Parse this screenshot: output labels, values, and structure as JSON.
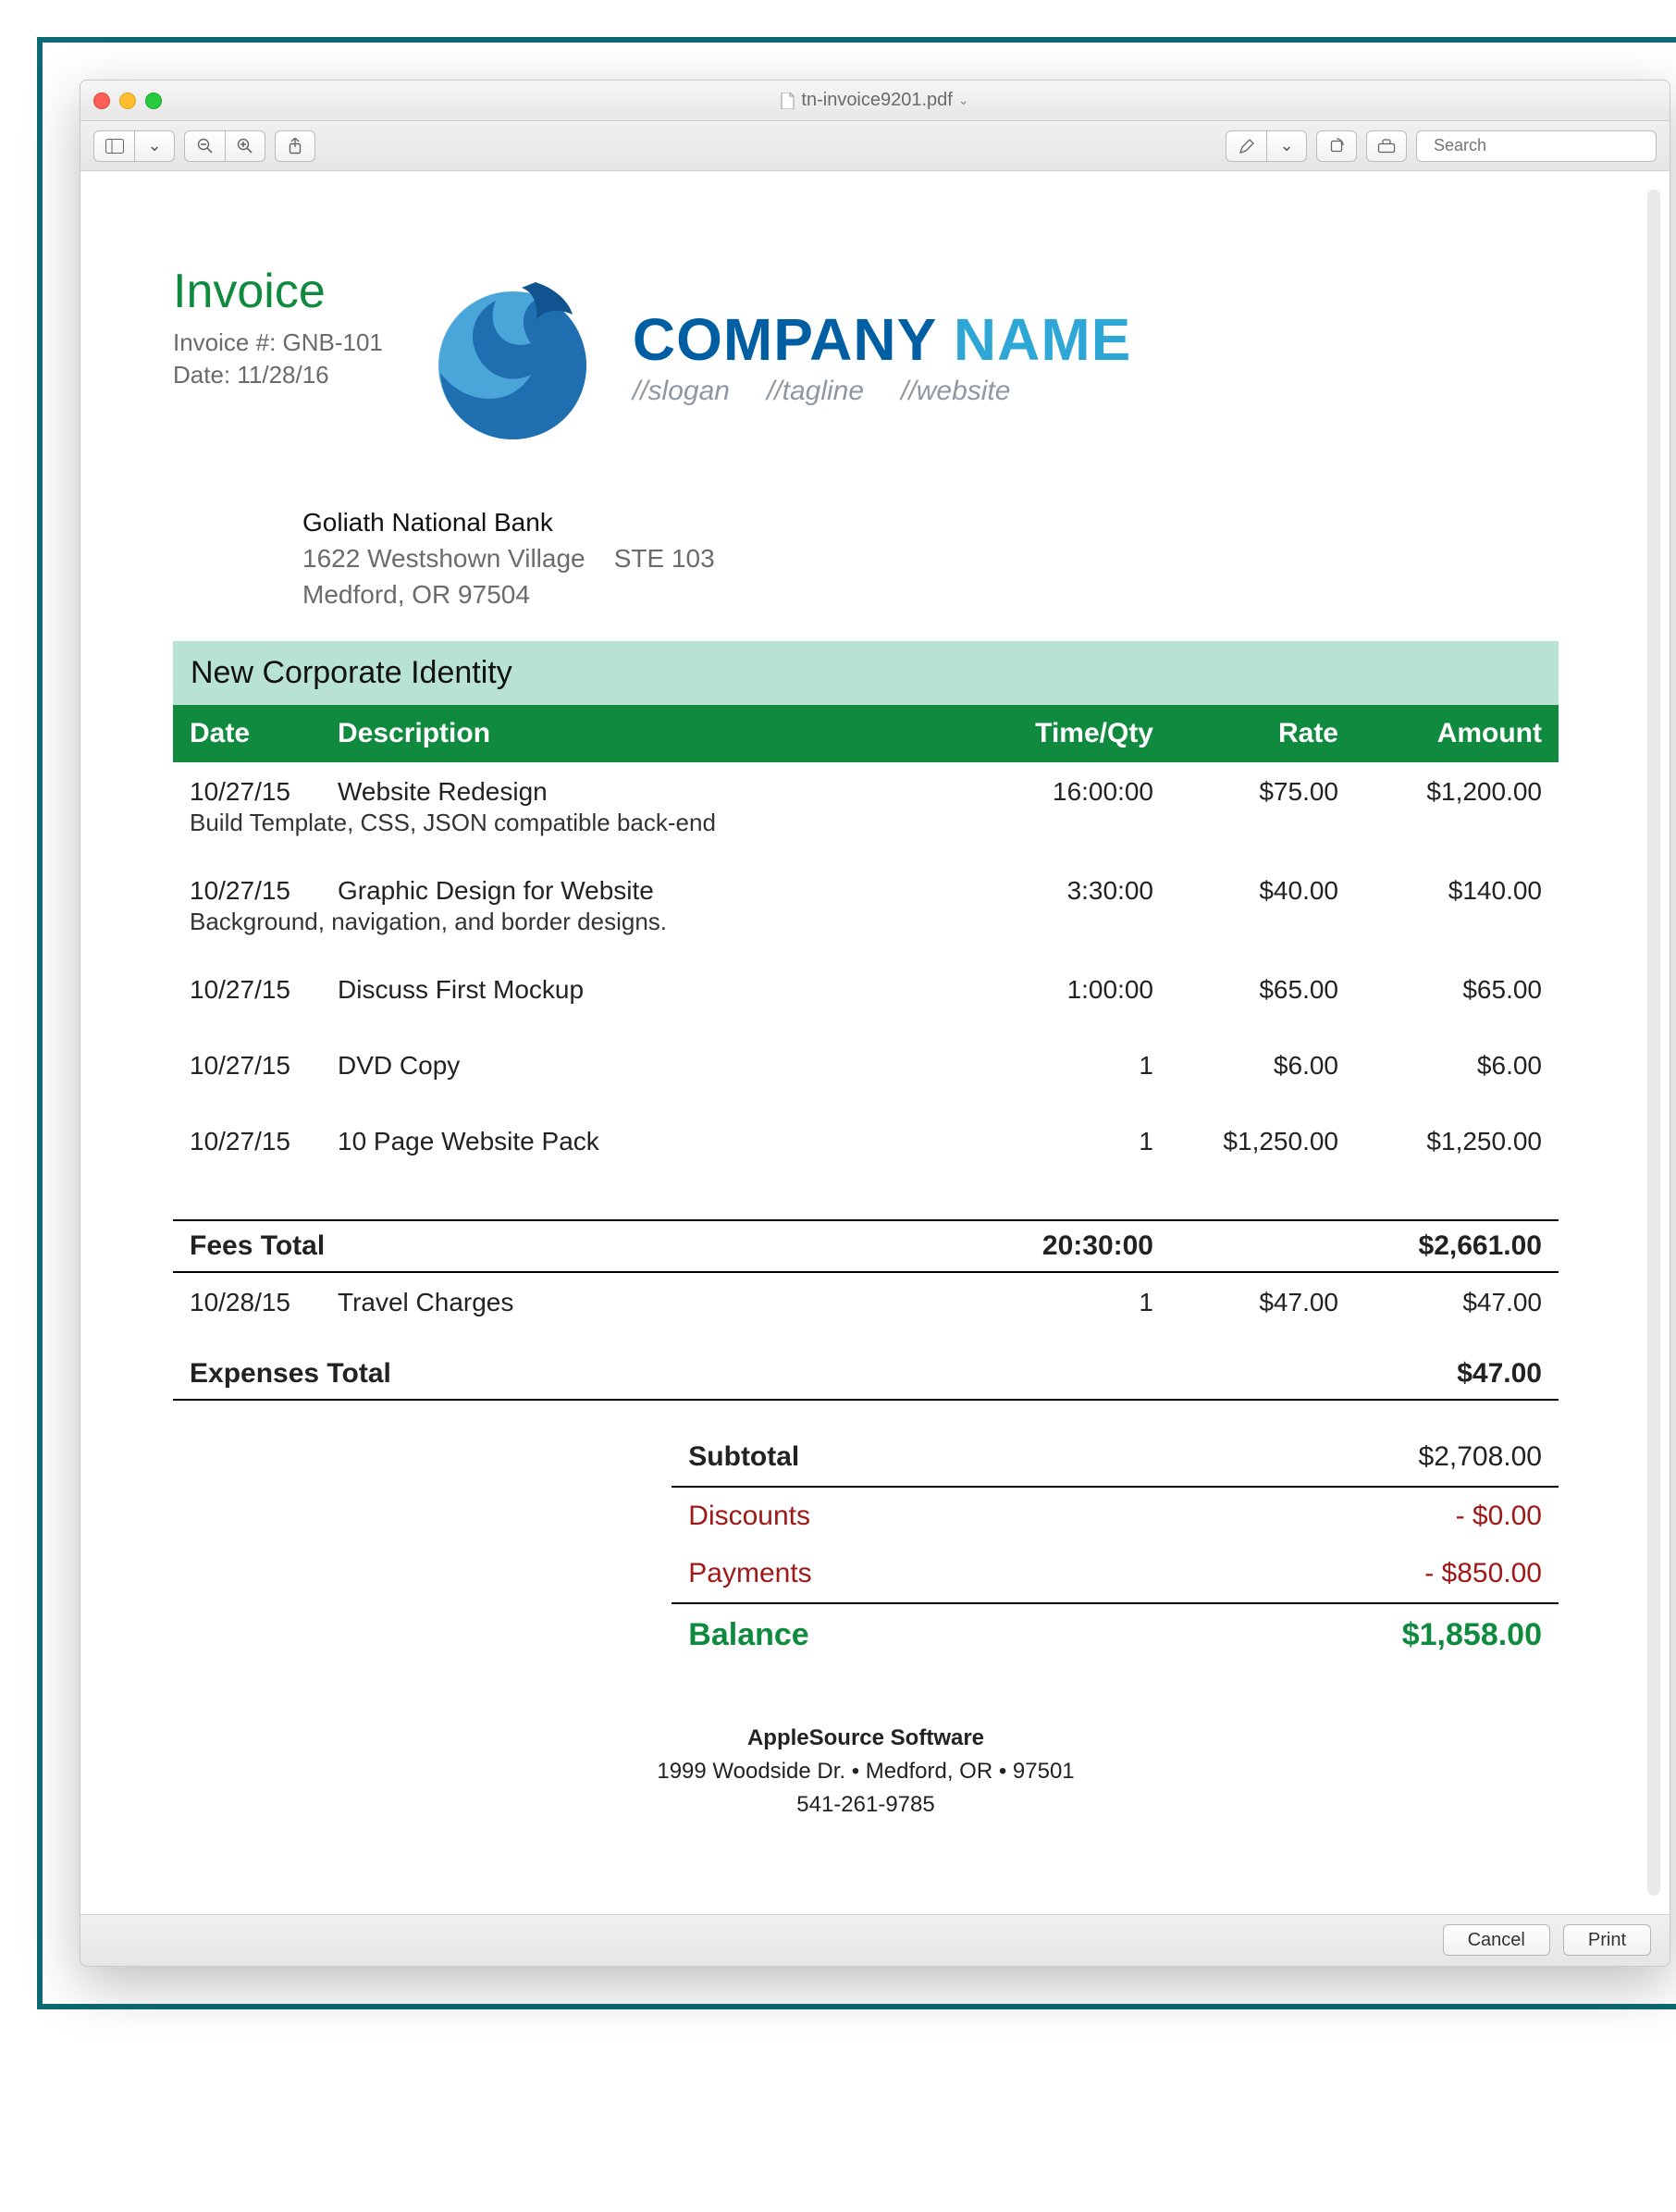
{
  "window": {
    "filename": "tn-invoice9201.pdf",
    "search_placeholder": "Search",
    "cancel": "Cancel",
    "print": "Print"
  },
  "colors": {
    "accent_green": "#0f8a3f",
    "header_teal": "#b7e2d4",
    "brand_dark": "#005fa3",
    "brand_light": "#2fa7d6",
    "discount_red": "#a01919",
    "text_gray": "#6a6a6a"
  },
  "invoice": {
    "title": "Invoice",
    "number_label": "Invoice #: GNB-101",
    "date_label": "Date: 11/28/16"
  },
  "brand": {
    "name_part1": "COMPANY",
    "name_part2": " NAME",
    "tag1": "//slogan",
    "tag2": "//tagline",
    "tag3": "//website"
  },
  "client": {
    "name": "Goliath National Bank",
    "addr1": "1622 Westshown Village    STE 103",
    "addr2": "Medford, OR 97504"
  },
  "project_title": "New Corporate Identity",
  "columns": {
    "date": "Date",
    "desc": "Description",
    "time": "Time/Qty",
    "rate": "Rate",
    "amount": "Amount"
  },
  "fees": [
    {
      "date": "10/27/15",
      "desc": "Website Redesign",
      "time": "16:00:00",
      "rate": "$75.00",
      "amount": "$1,200.00",
      "note": "Build Template, CSS, JSON compatible back-end"
    },
    {
      "date": "10/27/15",
      "desc": "Graphic Design for Website",
      "time": "3:30:00",
      "rate": "$40.00",
      "amount": "$140.00",
      "note": "Background, navigation, and border designs."
    },
    {
      "date": "10/27/15",
      "desc": "Discuss First Mockup",
      "time": "1:00:00",
      "rate": "$65.00",
      "amount": "$65.00",
      "note": ""
    },
    {
      "date": "10/27/15",
      "desc": "DVD Copy",
      "time": "1",
      "rate": "$6.00",
      "amount": "$6.00",
      "note": ""
    },
    {
      "date": "10/27/15",
      "desc": "10 Page Website Pack",
      "time": "1",
      "rate": "$1,250.00",
      "amount": "$1,250.00",
      "note": ""
    }
  ],
  "fees_total": {
    "label": "Fees Total",
    "time": "20:30:00",
    "amount": "$2,661.00"
  },
  "expenses": [
    {
      "date": "10/28/15",
      "desc": "Travel Charges",
      "time": "1",
      "rate": "$47.00",
      "amount": "$47.00"
    }
  ],
  "expenses_total": {
    "label": "Expenses Total",
    "amount": "$47.00"
  },
  "summary": {
    "subtotal": {
      "label": "Subtotal",
      "value": "$2,708.00"
    },
    "discounts": {
      "label": "Discounts",
      "value": "-  $0.00"
    },
    "payments": {
      "label": "Payments",
      "value": "-  $850.00"
    },
    "balance": {
      "label": "Balance",
      "value": "$1,858.00"
    }
  },
  "footer": {
    "company": "AppleSource Software",
    "addr": "1999 Woodside Dr.  • Medford, OR • 97501",
    "phone": "541-261-9785"
  }
}
